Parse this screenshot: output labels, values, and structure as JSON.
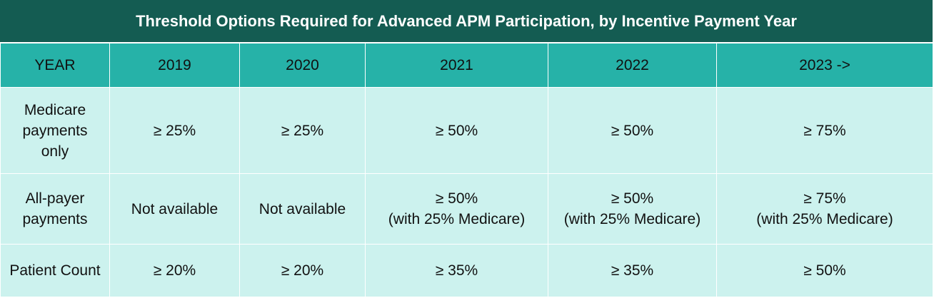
{
  "title": "Threshold Options Required for Advanced APM Participation, by Incentive Payment Year",
  "columns": [
    "YEAR",
    "2019",
    "2020",
    "2021",
    "2022",
    "2023 ->"
  ],
  "rows": [
    {
      "label": [
        "Medicare",
        "payments",
        "only"
      ],
      "cells": [
        [
          "≥ 25%"
        ],
        [
          "≥ 25%"
        ],
        [
          "≥ 50%"
        ],
        [
          "≥ 50%"
        ],
        [
          "≥ 75%"
        ]
      ]
    },
    {
      "label": [
        "All-payer",
        "payments"
      ],
      "cells": [
        [
          "Not available"
        ],
        [
          "Not available"
        ],
        [
          "≥ 50%",
          "(with 25% Medicare)"
        ],
        [
          "≥ 50%",
          "(with 25% Medicare)"
        ],
        [
          "≥ 75%",
          "(with 25% Medicare)"
        ]
      ]
    },
    {
      "label": [
        "Patient Count"
      ],
      "cells": [
        [
          "≥ 20%"
        ],
        [
          "≥ 20%"
        ],
        [
          "≥ 35%"
        ],
        [
          "≥ 35%"
        ],
        [
          "≥ 50%"
        ]
      ]
    }
  ],
  "colors": {
    "title_bg": "#145c52",
    "header_bg": "#26b2a8",
    "body_bg": "#ccf2ee"
  }
}
